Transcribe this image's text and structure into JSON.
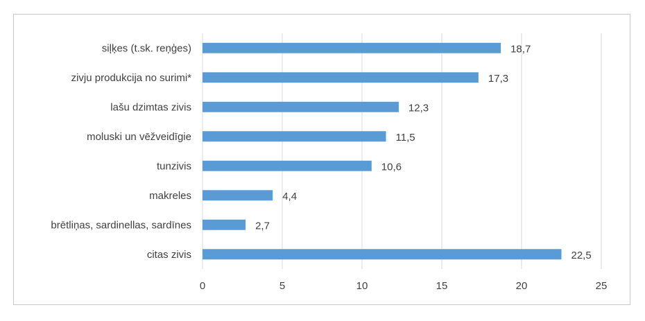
{
  "chart_data": {
    "type": "bar",
    "orientation": "horizontal",
    "categories": [
      "siļķes (t.sk. reņģes)",
      "zivju produkcija no surimi*",
      "lašu dzimtas zivis",
      "moluski un vēžveidīgie",
      "tunzivis",
      "makreles",
      "brētliņas, sardinellas, sardīnes",
      "citas zivis"
    ],
    "values": [
      18.7,
      17.3,
      12.3,
      11.5,
      10.6,
      4.4,
      2.7,
      22.5
    ],
    "value_labels": [
      "18,7",
      "17,3",
      "12,3",
      "11,5",
      "10,6",
      "4,4",
      "2,7",
      "22,5"
    ],
    "xticks": [
      "0",
      "5",
      "10",
      "15",
      "20",
      "25"
    ],
    "xtick_values": [
      0,
      5,
      10,
      15,
      20,
      25
    ],
    "xlim": [
      0,
      25
    ],
    "grid": true,
    "legend": "none",
    "bar_color": "#5b9bd5",
    "grid_color": "#d9d9d9",
    "text_color": "#404040"
  }
}
